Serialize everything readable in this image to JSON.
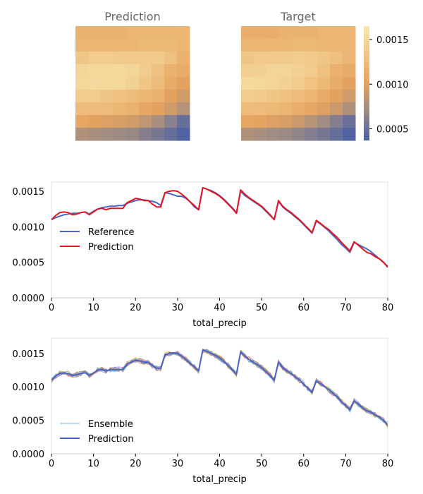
{
  "heatmaps": {
    "prediction_title": "Prediction",
    "target_title": "Target",
    "colorbar_ticks": [
      "0.0015",
      "0.0010",
      "0.0005"
    ],
    "colorbar_tick_values": [
      0.0015,
      0.001,
      0.0005
    ],
    "colorbar_range": [
      0.00037,
      0.00165
    ],
    "colormap": [
      "#4a5fa4",
      "#9a8a86",
      "#e5a35f",
      "#f0c484",
      "#f7e7b0"
    ]
  },
  "chart_data": [
    {
      "type": "heatmap",
      "title": "Prediction",
      "rows": 9,
      "cols": 9,
      "values": [
        [
          0.00115,
          0.00115,
          0.00115,
          0.00115,
          0.00118,
          0.00118,
          0.00118,
          0.00118,
          0.0012
        ],
        [
          0.00118,
          0.0012,
          0.0012,
          0.0012,
          0.0012,
          0.00122,
          0.00122,
          0.00122,
          0.00118
        ],
        [
          0.00135,
          0.0014,
          0.0014,
          0.00138,
          0.00138,
          0.00138,
          0.00138,
          0.0013,
          0.00115
        ],
        [
          0.00148,
          0.0015,
          0.0015,
          0.0015,
          0.00148,
          0.0014,
          0.0013,
          0.00115,
          0.0011
        ],
        [
          0.0015,
          0.00152,
          0.0015,
          0.0015,
          0.00145,
          0.00135,
          0.00125,
          0.0011,
          0.001
        ],
        [
          0.0014,
          0.0014,
          0.00135,
          0.0013,
          0.00125,
          0.0012,
          0.00115,
          0.001,
          0.00092
        ],
        [
          0.00125,
          0.00125,
          0.00125,
          0.0012,
          0.00115,
          0.00105,
          0.001,
          0.00092,
          0.0008
        ],
        [
          0.00105,
          0.001,
          0.00098,
          0.00095,
          0.00092,
          0.00085,
          0.00075,
          0.00062,
          0.00048
        ],
        [
          0.00078,
          0.00075,
          0.00072,
          0.0007,
          0.00068,
          0.0006,
          0.00055,
          0.00048,
          0.0004
        ]
      ]
    },
    {
      "type": "heatmap",
      "title": "Target",
      "rows": 9,
      "cols": 9,
      "values": [
        [
          0.00112,
          0.00112,
          0.00112,
          0.00115,
          0.00115,
          0.00115,
          0.00118,
          0.00118,
          0.00118
        ],
        [
          0.00118,
          0.00118,
          0.0012,
          0.0012,
          0.00122,
          0.00122,
          0.0012,
          0.0012,
          0.00118
        ],
        [
          0.00135,
          0.00138,
          0.00138,
          0.00138,
          0.0014,
          0.00138,
          0.00135,
          0.00128,
          0.00118
        ],
        [
          0.00142,
          0.00145,
          0.00148,
          0.00148,
          0.00145,
          0.0014,
          0.0013,
          0.00115,
          0.0011
        ],
        [
          0.00152,
          0.0015,
          0.00148,
          0.00145,
          0.0014,
          0.00132,
          0.00122,
          0.0011,
          0.001
        ],
        [
          0.0014,
          0.00138,
          0.00135,
          0.0013,
          0.00125,
          0.00118,
          0.0011,
          0.001,
          0.00092
        ],
        [
          0.00125,
          0.00125,
          0.00122,
          0.00118,
          0.00112,
          0.00105,
          0.00098,
          0.0009,
          0.00078
        ],
        [
          0.00105,
          0.00102,
          0.00098,
          0.00095,
          0.0009,
          0.00082,
          0.00072,
          0.0006,
          0.0005
        ],
        [
          0.00078,
          0.00075,
          0.00072,
          0.0007,
          0.00065,
          0.0006,
          0.00055,
          0.00048,
          0.0004
        ]
      ]
    },
    {
      "type": "line",
      "xlabel": "total_precip",
      "xlim": [
        0,
        80
      ],
      "ylim": [
        0,
        0.00163
      ],
      "xticks": [
        "0",
        "10",
        "20",
        "30",
        "40",
        "50",
        "60",
        "70",
        "80"
      ],
      "yticks": [
        "0.0000",
        "0.0005",
        "0.0010",
        "0.0015"
      ],
      "legend": "center-left",
      "x": [
        0,
        1,
        2,
        3,
        4,
        5,
        6,
        7,
        8,
        9,
        10,
        11,
        12,
        13,
        14,
        15,
        16,
        17,
        18,
        19,
        20,
        21,
        22,
        23,
        24,
        25,
        26,
        27,
        28,
        29,
        30,
        31,
        32,
        33,
        34,
        35,
        36,
        37,
        38,
        39,
        40,
        41,
        42,
        43,
        44,
        45,
        46,
        47,
        48,
        49,
        50,
        51,
        52,
        53,
        54,
        55,
        56,
        57,
        58,
        59,
        60,
        61,
        62,
        63,
        64,
        65,
        66,
        67,
        68,
        69,
        70,
        71,
        72,
        73,
        74,
        75,
        76,
        77,
        78,
        79,
        80
      ],
      "series": [
        {
          "name": "Reference",
          "color": "#4a63c8",
          "values": [
            0.0011,
            0.00113,
            0.00115,
            0.00117,
            0.00118,
            0.00119,
            0.00119,
            0.0012,
            0.00121,
            0.00118,
            0.00122,
            0.00125,
            0.00127,
            0.00128,
            0.00129,
            0.00129,
            0.0013,
            0.0013,
            0.00133,
            0.00135,
            0.00137,
            0.00138,
            0.00138,
            0.00137,
            0.00136,
            0.00134,
            0.0013,
            0.00148,
            0.00147,
            0.00145,
            0.00143,
            0.00143,
            0.0014,
            0.00135,
            0.00128,
            0.00124,
            0.00155,
            0.00153,
            0.00151,
            0.00148,
            0.00144,
            0.00139,
            0.00133,
            0.00127,
            0.0012,
            0.0015,
            0.00144,
            0.0014,
            0.00136,
            0.00132,
            0.00128,
            0.00122,
            0.00116,
            0.0011,
            0.00136,
            0.00128,
            0.00123,
            0.00119,
            0.00114,
            0.00109,
            0.00103,
            0.00097,
            0.00091,
            0.00108,
            0.00104,
            0.00099,
            0.00094,
            0.00088,
            0.00082,
            0.00075,
            0.0007,
            0.00064,
            0.00078,
            0.00075,
            0.00072,
            0.00069,
            0.00065,
            0.0006,
            0.00055,
            0.0005,
            0.00044
          ]
        },
        {
          "name": "Prediction",
          "color": "#e8141c",
          "values": [
            0.0011,
            0.00116,
            0.0012,
            0.00121,
            0.0012,
            0.00117,
            0.00118,
            0.0012,
            0.00121,
            0.00117,
            0.00121,
            0.00125,
            0.00126,
            0.00124,
            0.00126,
            0.00126,
            0.00126,
            0.00126,
            0.00134,
            0.00137,
            0.0014,
            0.00139,
            0.00137,
            0.00137,
            0.00132,
            0.00128,
            0.00128,
            0.00148,
            0.0015,
            0.00151,
            0.0015,
            0.00146,
            0.00141,
            0.00135,
            0.0013,
            0.00124,
            0.00155,
            0.00153,
            0.0015,
            0.00147,
            0.00143,
            0.00138,
            0.00132,
            0.00126,
            0.00119,
            0.00152,
            0.00146,
            0.00141,
            0.00137,
            0.00133,
            0.00129,
            0.00123,
            0.00117,
            0.0011,
            0.00137,
            0.00129,
            0.00124,
            0.0012,
            0.00115,
            0.0011,
            0.00104,
            0.00098,
            0.00092,
            0.00109,
            0.00105,
            0.001,
            0.00096,
            0.0009,
            0.00085,
            0.00078,
            0.00072,
            0.00066,
            0.00079,
            0.00074,
            0.00069,
            0.00064,
            0.00062,
            0.00058,
            0.00055,
            0.0005,
            0.00043
          ]
        }
      ]
    },
    {
      "type": "line",
      "xlabel": "total_precip",
      "xlim": [
        0,
        80
      ],
      "ylim": [
        0,
        0.00173
      ],
      "xticks": [
        "0",
        "10",
        "20",
        "30",
        "40",
        "50",
        "60",
        "70",
        "80"
      ],
      "yticks": [
        "0.0000",
        "0.0005",
        "0.0010",
        "0.0015"
      ],
      "legend": "lower-left",
      "x": [
        0,
        1,
        2,
        3,
        4,
        5,
        6,
        7,
        8,
        9,
        10,
        11,
        12,
        13,
        14,
        15,
        16,
        17,
        18,
        19,
        20,
        21,
        22,
        23,
        24,
        25,
        26,
        27,
        28,
        29,
        30,
        31,
        32,
        33,
        34,
        35,
        36,
        37,
        38,
        39,
        40,
        41,
        42,
        43,
        44,
        45,
        46,
        47,
        48,
        49,
        50,
        51,
        52,
        53,
        54,
        55,
        56,
        57,
        58,
        59,
        60,
        61,
        62,
        63,
        64,
        65,
        66,
        67,
        68,
        69,
        70,
        71,
        72,
        73,
        74,
        75,
        76,
        77,
        78,
        79,
        80
      ],
      "ensemble": {
        "name": "Ensemble",
        "members": 10,
        "colors": [
          "#f2a23a",
          "#7ab46a",
          "#e05c4b",
          "#9a78c8",
          "#4aa0c8",
          "#c8a040",
          "#6a8ad0",
          "#d87ab0",
          "#58b8a0",
          "#b07a4a"
        ],
        "spread": 4e-05
      },
      "series": [
        {
          "name": "Prediction",
          "color": "#4a63c8",
          "values": [
            0.0011,
            0.00116,
            0.0012,
            0.00121,
            0.0012,
            0.00117,
            0.00118,
            0.0012,
            0.00121,
            0.00117,
            0.00121,
            0.00125,
            0.00126,
            0.00124,
            0.00126,
            0.00126,
            0.00126,
            0.00126,
            0.00134,
            0.00137,
            0.0014,
            0.00139,
            0.00137,
            0.00137,
            0.00132,
            0.00128,
            0.00128,
            0.00148,
            0.0015,
            0.00151,
            0.0015,
            0.00146,
            0.00141,
            0.00135,
            0.0013,
            0.00124,
            0.00155,
            0.00153,
            0.0015,
            0.00147,
            0.00143,
            0.00138,
            0.00132,
            0.00126,
            0.00119,
            0.00152,
            0.00146,
            0.00141,
            0.00137,
            0.00133,
            0.00129,
            0.00123,
            0.00117,
            0.0011,
            0.00137,
            0.00129,
            0.00124,
            0.0012,
            0.00115,
            0.0011,
            0.00104,
            0.00098,
            0.00092,
            0.00109,
            0.00105,
            0.001,
            0.00096,
            0.0009,
            0.00085,
            0.00078,
            0.00072,
            0.00066,
            0.00079,
            0.00074,
            0.00069,
            0.00064,
            0.00062,
            0.00058,
            0.00055,
            0.0005,
            0.00043
          ]
        }
      ]
    }
  ]
}
